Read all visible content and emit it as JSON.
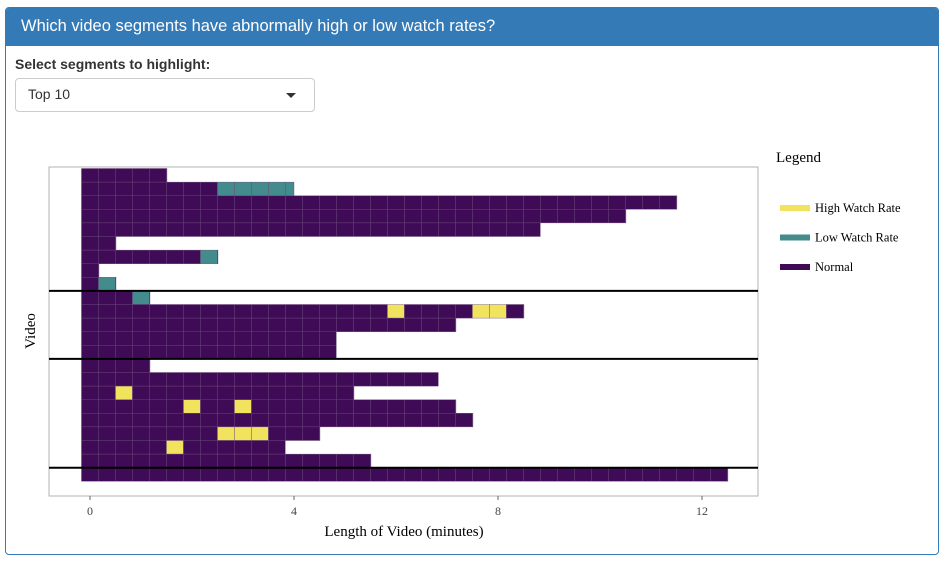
{
  "header": {
    "title": "Which video segments have abnormally high or low watch rates?"
  },
  "control": {
    "label": "Select segments to highlight:",
    "selected": "Top 10"
  },
  "colors": {
    "high": "#f1e35d",
    "low": "#448b8e",
    "normal": "#400b56",
    "accent": "#337ab7"
  },
  "chart_data": {
    "type": "heatmap",
    "xlabel": "Length of Video (minutes)",
    "ylabel": "Video",
    "xlim": [
      -0.25,
      13
    ],
    "x_ticks": [
      0,
      4,
      8,
      12
    ],
    "segment_minutes": 0.3333,
    "legend": {
      "title": "Legend",
      "position": "right",
      "entries": [
        {
          "key": "high",
          "label": "High Watch Rate"
        },
        {
          "key": "low",
          "label": "Low Watch Rate"
        },
        {
          "key": "normal",
          "label": "Normal"
        }
      ]
    },
    "separators_after_row": [
      8,
      13,
      21
    ],
    "rows": [
      {
        "length": 1.5,
        "high": [],
        "low": []
      },
      {
        "length": 4.0,
        "high": [],
        "low": [
          2.5,
          2.833,
          3.167,
          3.5,
          3.833
        ]
      },
      {
        "length": 11.5,
        "high": [],
        "low": []
      },
      {
        "length": 10.5,
        "high": [],
        "low": []
      },
      {
        "length": 8.83,
        "high": [],
        "low": []
      },
      {
        "length": 0.5,
        "high": [],
        "low": []
      },
      {
        "length": 2.5,
        "high": [],
        "low": [
          2.167
        ]
      },
      {
        "length": 0.17,
        "high": [],
        "low": []
      },
      {
        "length": 0.5,
        "high": [],
        "low": [
          0.167
        ]
      },
      {
        "length": 1.17,
        "high": [],
        "low": [
          0.833
        ]
      },
      {
        "length": 8.5,
        "high": [
          5.833,
          7.5,
          7.833
        ],
        "low": []
      },
      {
        "length": 7.17,
        "high": [],
        "low": []
      },
      {
        "length": 4.83,
        "high": [],
        "low": []
      },
      {
        "length": 4.83,
        "high": [],
        "low": []
      },
      {
        "length": 1.17,
        "high": [],
        "low": []
      },
      {
        "length": 6.83,
        "high": [],
        "low": []
      },
      {
        "length": 5.17,
        "high": [
          0.5
        ],
        "low": []
      },
      {
        "length": 7.17,
        "high": [
          1.833,
          2.833
        ],
        "low": []
      },
      {
        "length": 7.5,
        "high": [],
        "low": []
      },
      {
        "length": 4.5,
        "high": [
          2.5,
          2.833,
          3.167
        ],
        "low": []
      },
      {
        "length": 3.83,
        "high": [
          1.5
        ],
        "low": []
      },
      {
        "length": 5.5,
        "high": [],
        "low": []
      },
      {
        "length": 12.5,
        "high": [],
        "low": []
      }
    ]
  }
}
